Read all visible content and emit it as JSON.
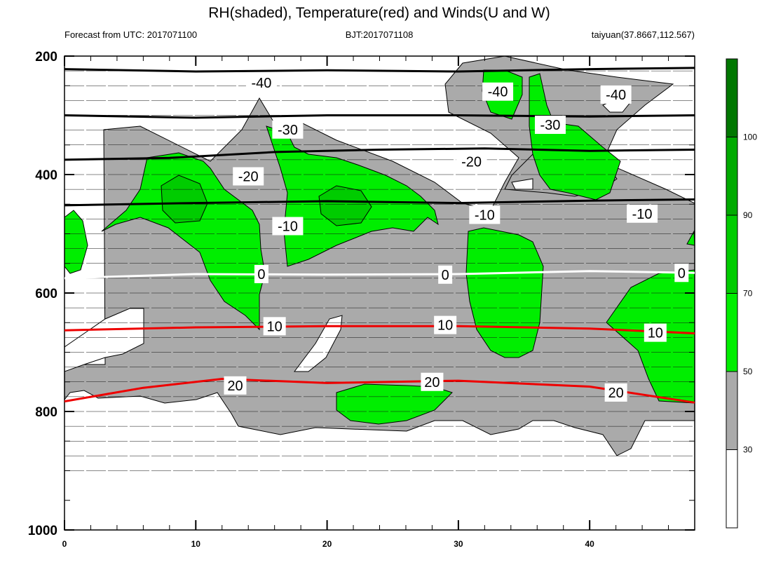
{
  "header": {
    "title": "RH(shaded), Temperature(red) and Winds(U and W)",
    "left": "Forecast from UTC: 2017071100",
    "center": "BJT:2017071108",
    "right": "taiyuan(37.8667,112.567)"
  },
  "chart_data": {
    "type": "contour",
    "xlabel": "",
    "ylabel": "",
    "x_range": [
      0,
      48
    ],
    "y_range": [
      200,
      1000
    ],
    "y_inverted": true,
    "x_ticks": [
      0,
      10,
      20,
      30,
      40
    ],
    "y_ticks": [
      200,
      400,
      600,
      800,
      1000
    ],
    "colorbar": {
      "levels": [
        30,
        50,
        70,
        90,
        100
      ],
      "colors": [
        "#ffffff",
        "#aaaaaa",
        "#00ee00",
        "#00cc00",
        "#00aa00",
        "#007700"
      ]
    },
    "temperature_contours": [
      {
        "label": "-40",
        "color": "#000000",
        "points": [
          [
            0,
            222
          ],
          [
            10,
            226
          ],
          [
            20,
            224
          ],
          [
            30,
            226
          ],
          [
            40,
            222
          ],
          [
            48,
            220
          ]
        ]
      },
      {
        "label": "-30",
        "color": "#000000",
        "points": [
          [
            0,
            300
          ],
          [
            10,
            304
          ],
          [
            20,
            300
          ],
          [
            30,
            300
          ],
          [
            40,
            302
          ],
          [
            48,
            300
          ]
        ]
      },
      {
        "label": "-20",
        "color": "#000000",
        "points": [
          [
            0,
            375
          ],
          [
            8,
            372
          ],
          [
            16,
            362
          ],
          [
            24,
            358
          ],
          [
            32,
            356
          ],
          [
            40,
            360
          ],
          [
            48,
            358
          ]
        ]
      },
      {
        "label": "-10",
        "color": "#000000",
        "points": [
          [
            0,
            452
          ],
          [
            10,
            448
          ],
          [
            20,
            445
          ],
          [
            30,
            448
          ],
          [
            40,
            444
          ],
          [
            48,
            442
          ]
        ]
      },
      {
        "label": "0",
        "color": "#ffffff",
        "points": [
          [
            0,
            575
          ],
          [
            10,
            568
          ],
          [
            20,
            569
          ],
          [
            30,
            568
          ],
          [
            40,
            563
          ],
          [
            48,
            566
          ]
        ]
      },
      {
        "label": "10",
        "color": "#ee0000",
        "points": [
          [
            0,
            663
          ],
          [
            10,
            658
          ],
          [
            20,
            656
          ],
          [
            30,
            656
          ],
          [
            40,
            660
          ],
          [
            48,
            668
          ]
        ]
      },
      {
        "label": "20",
        "color": "#ee0000",
        "points": [
          [
            0,
            783
          ],
          [
            6,
            760
          ],
          [
            12,
            745
          ],
          [
            20,
            752
          ],
          [
            30,
            748
          ],
          [
            40,
            758
          ],
          [
            48,
            785
          ]
        ]
      }
    ],
    "contour_labels": [
      {
        "text": "-40",
        "x": 15,
        "y": 245
      },
      {
        "text": "-40",
        "x": 33,
        "y": 260
      },
      {
        "text": "-40",
        "x": 42,
        "y": 265
      },
      {
        "text": "-30",
        "x": 17,
        "y": 324
      },
      {
        "text": "-30",
        "x": 37,
        "y": 316
      },
      {
        "text": "-20",
        "x": 14,
        "y": 403
      },
      {
        "text": "-20",
        "x": 31,
        "y": 378
      },
      {
        "text": "-10",
        "x": 17,
        "y": 487
      },
      {
        "text": "-10",
        "x": 32,
        "y": 468
      },
      {
        "text": "-10",
        "x": 44,
        "y": 466
      },
      {
        "text": "0",
        "x": 15,
        "y": 568
      },
      {
        "text": "0",
        "x": 29,
        "y": 569
      },
      {
        "text": "0",
        "x": 47,
        "y": 566
      },
      {
        "text": "10",
        "x": 16,
        "y": 656
      },
      {
        "text": "10",
        "x": 29,
        "y": 654
      },
      {
        "text": "10",
        "x": 45,
        "y": 667
      },
      {
        "text": "20",
        "x": 13,
        "y": 756
      },
      {
        "text": "20",
        "x": 28,
        "y": 750
      },
      {
        "text": "20",
        "x": 42,
        "y": 768
      }
    ]
  },
  "colors": {
    "gray": "#aaaaaa",
    "green": "#00ee00",
    "black": "#000000",
    "red": "#ee0000"
  }
}
